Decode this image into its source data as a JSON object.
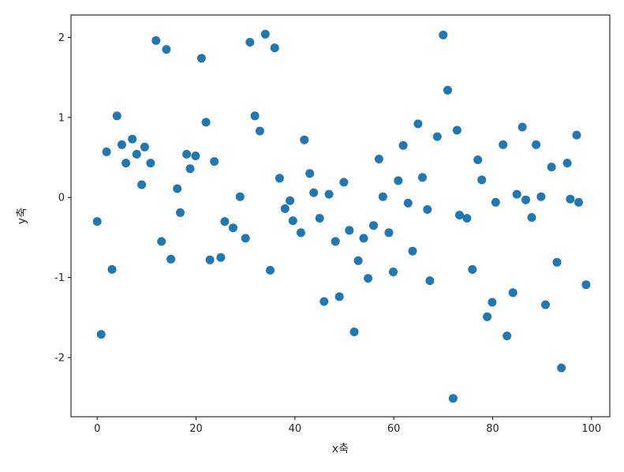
{
  "figure": {
    "background": "#ffffff",
    "text_color": "#262626",
    "spine_color": "#000000"
  },
  "chart_data": {
    "type": "scatter",
    "title": "",
    "xlabel": "x축",
    "ylabel": "y축",
    "xlim": [
      -5.3,
      103.7
    ],
    "ylim": [
      -2.74,
      2.28
    ],
    "xticks": [
      0,
      20,
      40,
      60,
      80,
      100
    ],
    "yticks": [
      -2,
      -1,
      0,
      1,
      2
    ],
    "grid": false,
    "legend": null,
    "marker_color": "#1f77b4",
    "marker_radius_px": 5.5,
    "points": [
      [
        11.9,
        1.96
      ],
      [
        14.0,
        1.85
      ],
      [
        21.1,
        1.74
      ],
      [
        4.0,
        1.02
      ],
      [
        22.0,
        0.94
      ],
      [
        7.1,
        0.73
      ],
      [
        5.0,
        0.66
      ],
      [
        9.6,
        0.63
      ],
      [
        1.9,
        0.57
      ],
      [
        8.0,
        0.54
      ],
      [
        18.1,
        0.54
      ],
      [
        19.9,
        0.52
      ],
      [
        5.8,
        0.43
      ],
      [
        10.8,
        0.43
      ],
      [
        23.7,
        0.45
      ],
      [
        18.8,
        0.36
      ],
      [
        9.0,
        0.16
      ],
      [
        16.2,
        0.11
      ],
      [
        28.9,
        0.01
      ],
      [
        34.0,
        2.04
      ],
      [
        30.9,
        1.94
      ],
      [
        35.9,
        1.87
      ],
      [
        31.9,
        1.02
      ],
      [
        32.9,
        0.83
      ],
      [
        41.9,
        0.72
      ],
      [
        64.9,
        0.92
      ],
      [
        61.9,
        0.65
      ],
      [
        57.0,
        0.48
      ],
      [
        43.0,
        0.3
      ],
      [
        36.9,
        0.24
      ],
      [
        49.9,
        0.19
      ],
      [
        60.9,
        0.21
      ],
      [
        65.8,
        0.25
      ],
      [
        43.8,
        0.06
      ],
      [
        46.9,
        0.04
      ],
      [
        57.8,
        0.01
      ],
      [
        62.9,
        -0.07
      ],
      [
        39.0,
        -0.04
      ],
      [
        38.0,
        -0.14
      ],
      [
        70.0,
        2.03
      ],
      [
        70.9,
        1.34
      ],
      [
        72.8,
        0.84
      ],
      [
        68.8,
        0.76
      ],
      [
        86.0,
        0.88
      ],
      [
        97.0,
        0.78
      ],
      [
        82.1,
        0.66
      ],
      [
        88.8,
        0.66
      ],
      [
        77.0,
        0.47
      ],
      [
        91.9,
        0.38
      ],
      [
        95.1,
        0.43
      ],
      [
        77.8,
        0.22
      ],
      [
        84.9,
        0.04
      ],
      [
        86.7,
        -0.03
      ],
      [
        89.8,
        0.01
      ],
      [
        95.7,
        -0.02
      ],
      [
        97.4,
        -0.06
      ],
      [
        80.6,
        -0.06
      ],
      [
        66.8,
        -0.15
      ],
      [
        0.0,
        -0.3
      ],
      [
        16.8,
        -0.19
      ],
      [
        25.8,
        -0.3
      ],
      [
        27.5,
        -0.38
      ],
      [
        30.0,
        -0.51
      ],
      [
        13.0,
        -0.55
      ],
      [
        14.9,
        -0.77
      ],
      [
        22.8,
        -0.78
      ],
      [
        25.0,
        -0.75
      ],
      [
        3.0,
        -0.9
      ],
      [
        0.8,
        -1.71
      ],
      [
        39.6,
        -0.29
      ],
      [
        45.0,
        -0.26
      ],
      [
        41.2,
        -0.44
      ],
      [
        51.0,
        -0.41
      ],
      [
        55.9,
        -0.35
      ],
      [
        59.0,
        -0.44
      ],
      [
        48.2,
        -0.55
      ],
      [
        53.9,
        -0.51
      ],
      [
        52.8,
        -0.79
      ],
      [
        63.8,
        -0.67
      ],
      [
        35.0,
        -0.91
      ],
      [
        59.9,
        -0.93
      ],
      [
        54.8,
        -1.01
      ],
      [
        49.0,
        -1.24
      ],
      [
        45.9,
        -1.3
      ],
      [
        52.0,
        -1.68
      ],
      [
        73.3,
        -0.22
      ],
      [
        74.8,
        -0.26
      ],
      [
        87.9,
        -0.25
      ],
      [
        67.3,
        -1.04
      ],
      [
        75.9,
        -0.9
      ],
      [
        93.0,
        -0.81
      ],
      [
        98.9,
        -1.09
      ],
      [
        84.1,
        -1.19
      ],
      [
        79.9,
        -1.31
      ],
      [
        90.7,
        -1.34
      ],
      [
        78.9,
        -1.49
      ],
      [
        82.9,
        -1.73
      ],
      [
        93.9,
        -2.13
      ],
      [
        72.0,
        -2.51
      ]
    ]
  }
}
